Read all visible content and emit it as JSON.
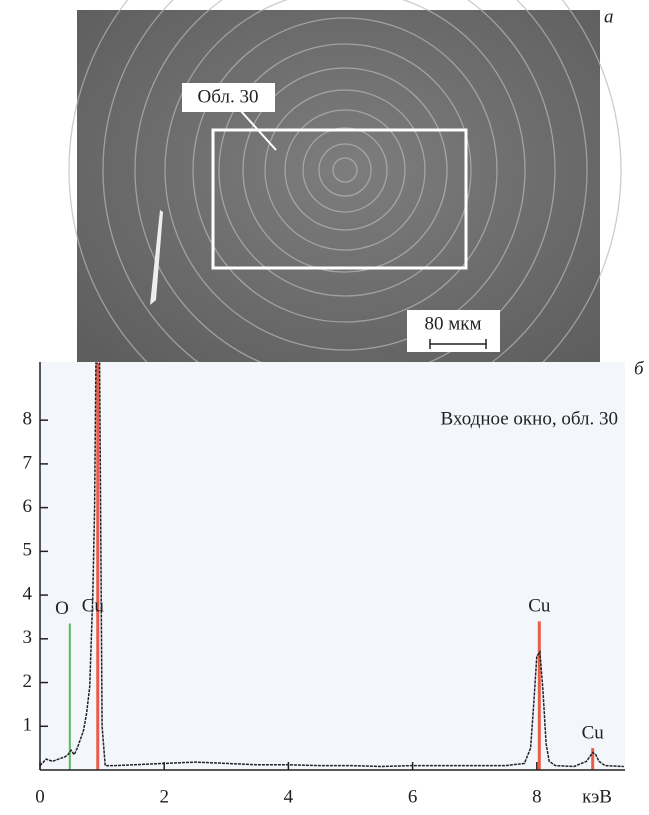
{
  "panel_a": {
    "label": "а",
    "region_label": "Обл. 30",
    "scale_bar": "80 мкм"
  },
  "chart_data": {
    "type": "line",
    "panel_label": "б",
    "title": "Входное окно, обл. 30",
    "x_label": "кэВ",
    "x": [
      0,
      0.1,
      0.2,
      0.3,
      0.4,
      0.45,
      0.5,
      0.55,
      0.6,
      0.7,
      0.75,
      0.8,
      0.85,
      0.88,
      0.9,
      0.93,
      0.96,
      0.98,
      1.0,
      1.05,
      1.2,
      1.5,
      2,
      2.5,
      3,
      3.5,
      4,
      4.5,
      5,
      5.5,
      6,
      6.5,
      7,
      7.5,
      7.8,
      7.9,
      7.95,
      8.0,
      8.05,
      8.1,
      8.15,
      8.2,
      8.3,
      8.6,
      8.8,
      8.9,
      8.95,
      9.0,
      9.1,
      9.4
    ],
    "values": [
      0.1,
      0.25,
      0.2,
      0.25,
      0.3,
      0.35,
      0.45,
      0.35,
      0.5,
      0.9,
      1.3,
      1.9,
      4.0,
      6.0,
      9.3,
      9.3,
      9.3,
      5.0,
      1.0,
      0.1,
      0.1,
      0.12,
      0.15,
      0.18,
      0.15,
      0.12,
      0.12,
      0.1,
      0.1,
      0.08,
      0.1,
      0.1,
      0.1,
      0.1,
      0.15,
      0.5,
      1.5,
      2.6,
      2.7,
      1.8,
      0.6,
      0.2,
      0.1,
      0.08,
      0.2,
      0.4,
      0.35,
      0.2,
      0.1,
      0.08
    ],
    "color": "#222222",
    "markers": [
      {
        "label": "O",
        "x": 0.48,
        "height": 3.35,
        "color": "#3cb043"
      },
      {
        "label": "Cu",
        "x": 0.93,
        "height": 9.3,
        "color": "#e8422a"
      },
      {
        "label": "Cu",
        "x": 8.04,
        "height": 3.4,
        "color": "#e8422a"
      },
      {
        "label": "Cu",
        "x": 8.9,
        "height": 0.5,
        "color": "#e8422a"
      }
    ],
    "xlim": [
      0,
      9.42
    ],
    "ylim": [
      0,
      9.33
    ],
    "xticks": [
      0,
      2,
      4,
      6,
      8
    ],
    "yticks": [
      1,
      2,
      3,
      4,
      5,
      6,
      7,
      8
    ]
  }
}
